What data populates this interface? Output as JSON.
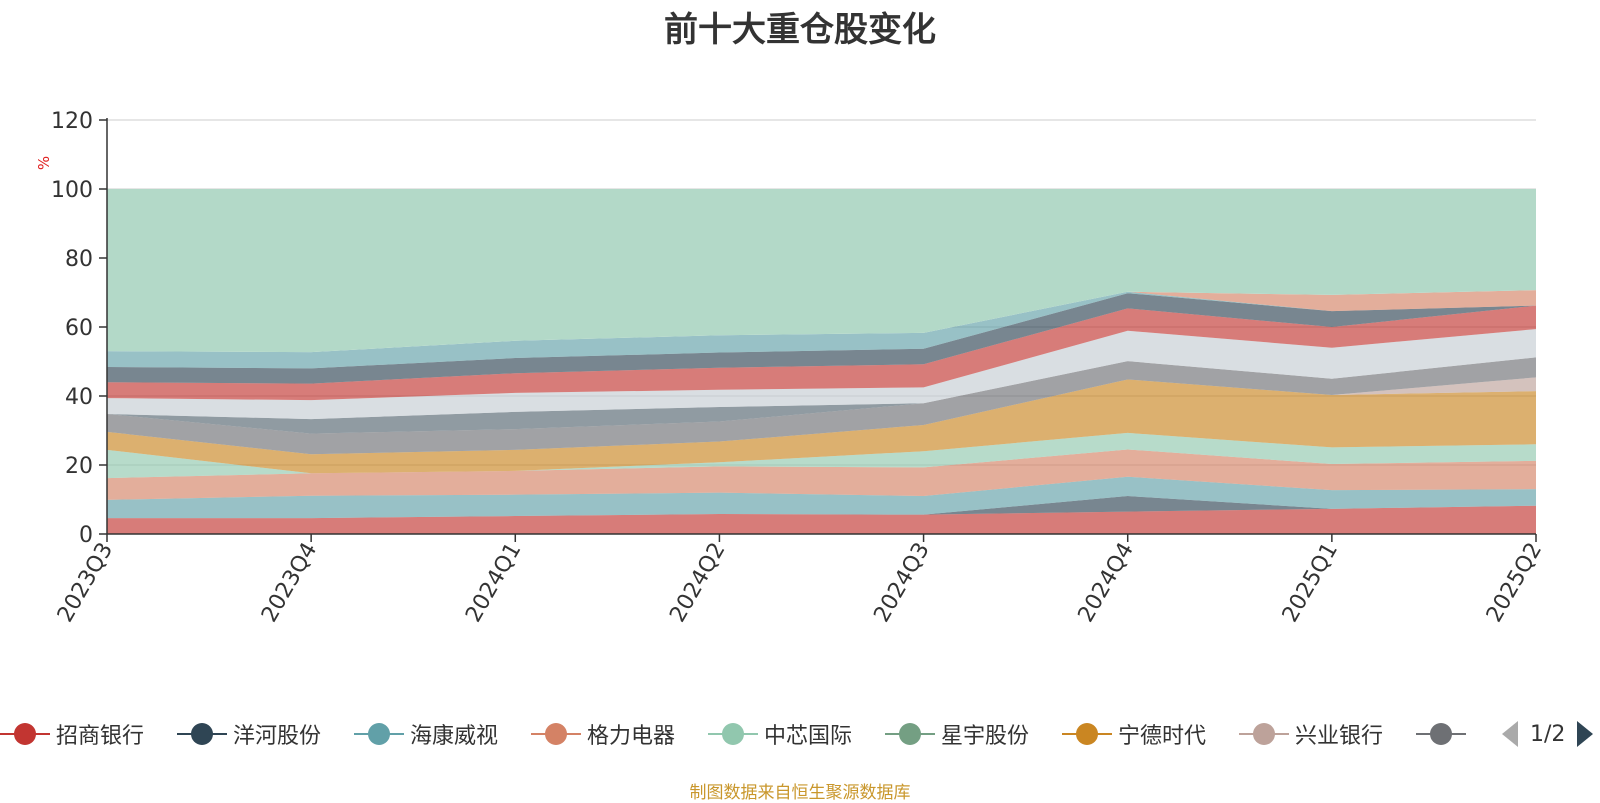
{
  "title": "前十大重仓股变化",
  "source_note": "制图数据来自恒生聚源数据库",
  "legend_page": "1/2",
  "colors": {
    "title": "#333333",
    "source_note": "#c9972c",
    "ylabel": "#e02020",
    "remainder": "#b3d9c8",
    "pager_active": "#2f4554",
    "pager_inactive": "#aaaaaa"
  },
  "chart_data": {
    "type": "area",
    "stacked": true,
    "title": "前十大重仓股变化",
    "ylabel": "%",
    "ylim": [
      0,
      120
    ],
    "yticks": [
      0,
      20,
      40,
      60,
      80,
      100,
      120
    ],
    "grid": true,
    "categories": [
      "2023Q3",
      "2023Q4",
      "2024Q1",
      "2024Q2",
      "2024Q3",
      "2024Q4",
      "2025Q1",
      "2025Q2"
    ],
    "series": [
      {
        "name": "招商银行",
        "color": "#c23531",
        "values": [
          4.6,
          4.6,
          5.2,
          5.8,
          5.6,
          6.5,
          7.3,
          8.2
        ]
      },
      {
        "name": "洋河股份",
        "color": "#2f4554",
        "values": [
          0,
          0,
          0,
          0,
          0,
          4.5,
          0,
          0
        ]
      },
      {
        "name": "海康威视",
        "color": "#61a0a8",
        "values": [
          5.3,
          6.5,
          6.2,
          6.2,
          5.4,
          5.6,
          5.4,
          4.8
        ]
      },
      {
        "name": "格力电器",
        "color": "#d48265",
        "values": [
          6.3,
          6.5,
          6.9,
          7.6,
          8.3,
          7.9,
          7.6,
          8.2
        ]
      },
      {
        "name": "中芯国际",
        "color": "#91c7ae",
        "values": [
          8.2,
          0,
          0,
          1.2,
          4.7,
          4.8,
          4.8,
          4.8
        ]
      },
      {
        "name": "星宇股份",
        "color": "#749f83",
        "values": [
          0,
          0,
          0,
          0,
          0,
          0,
          0,
          0
        ]
      },
      {
        "name": "宁德时代",
        "color": "#ca8622",
        "values": [
          5.2,
          5.5,
          6.1,
          6.0,
          7.6,
          15.5,
          15.2,
          15.4
        ]
      },
      {
        "name": "兴业银行",
        "color": "#bda29a",
        "values": [
          0,
          0,
          0,
          0,
          0,
          0,
          0,
          4.0
        ]
      },
      {
        "name": "",
        "color": "#6e7074",
        "values": [
          5.2,
          6.0,
          6.0,
          5.8,
          6.3,
          5.3,
          4.7,
          5.8
        ]
      },
      {
        "name": "",
        "color": "#546570",
        "values": [
          0,
          4.2,
          5.0,
          4.2,
          0,
          0,
          0,
          0
        ]
      },
      {
        "name": "",
        "color": "#c4ccd3",
        "values": [
          4.6,
          5.5,
          5.5,
          5.0,
          4.6,
          8.8,
          9.0,
          8.2
        ]
      },
      {
        "name": "",
        "color": "#c23531",
        "values": [
          4.6,
          4.8,
          5.7,
          6.4,
          6.7,
          6.5,
          6.0,
          6.8
        ]
      },
      {
        "name": "",
        "color": "#2f4554",
        "values": [
          4.4,
          4.4,
          4.4,
          4.4,
          4.5,
          4.4,
          4.6,
          0
        ]
      },
      {
        "name": "",
        "color": "#61a0a8",
        "values": [
          4.6,
          4.7,
          5.0,
          5.0,
          4.6,
          0.4,
          0,
          0
        ]
      },
      {
        "name": "",
        "color": "#d48265",
        "values": [
          0,
          0,
          0,
          0,
          0,
          0,
          4.7,
          4.5
        ]
      }
    ],
    "remainder_to": 100
  }
}
